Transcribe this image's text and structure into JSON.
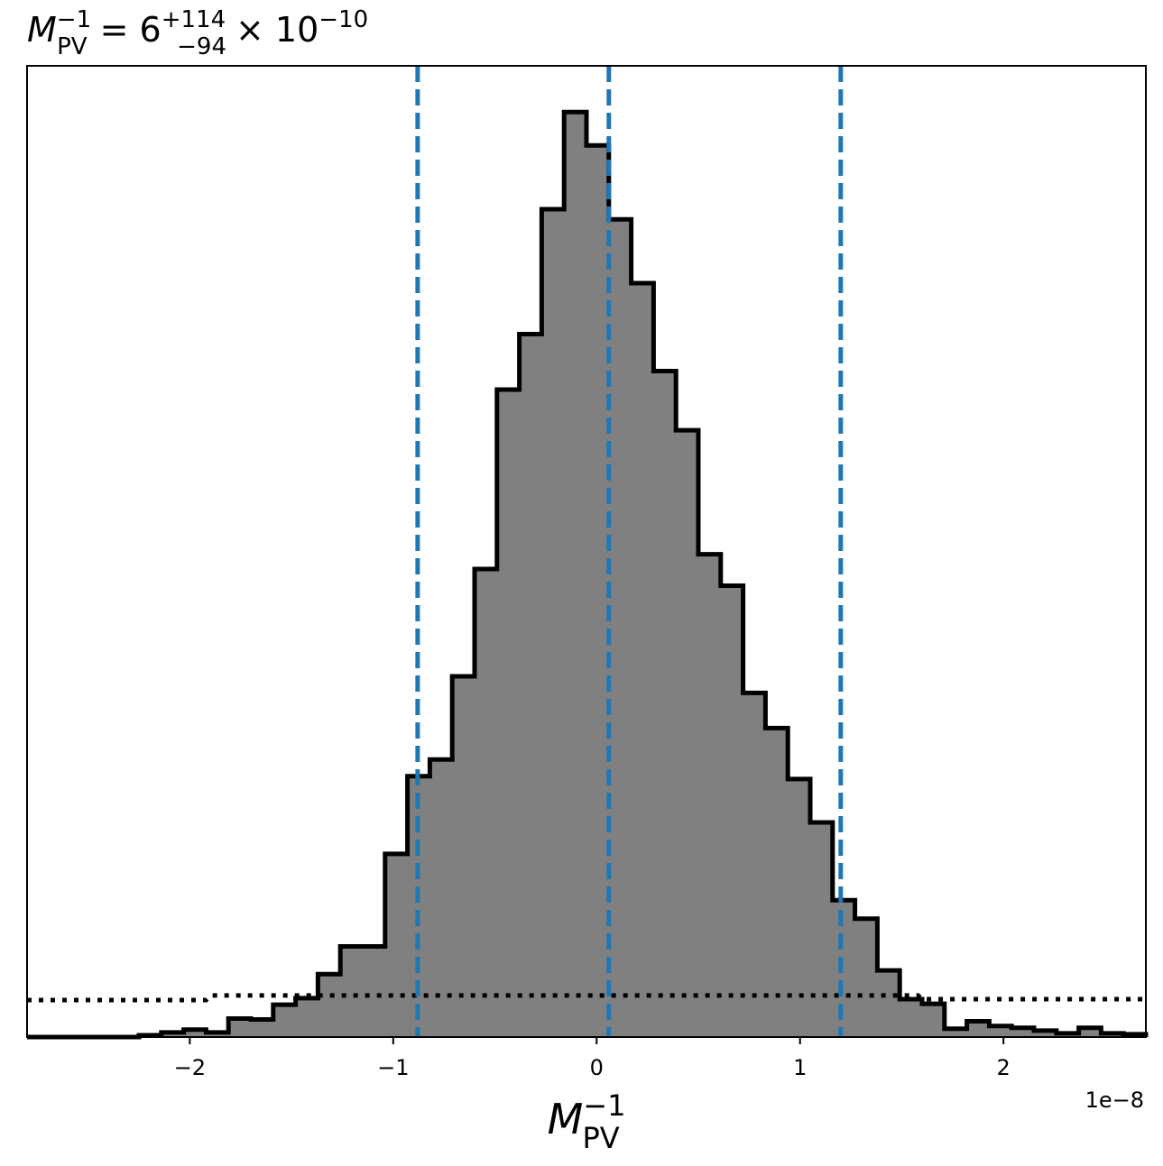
{
  "chart_data": {
    "type": "histogram",
    "title": {
      "symbol": "M",
      "symbol_sub": "PV",
      "symbol_sup": "−1",
      "equals": "= 6",
      "err_plus": "+114",
      "err_minus": "−94",
      "times": "× 10",
      "exponent": "−10"
    },
    "xlabel": {
      "symbol": "M",
      "sub": "PV",
      "sup": "−1"
    },
    "x_offset_label": "1e−8",
    "xlim": [
      -2.8,
      2.7
    ],
    "ylim": [
      0,
      1.05
    ],
    "xticks": [
      {
        "value": -2,
        "label": "−2"
      },
      {
        "value": -1,
        "label": "−1"
      },
      {
        "value": 0,
        "label": "0"
      },
      {
        "value": 1,
        "label": "1"
      },
      {
        "value": 2,
        "label": "2"
      }
    ],
    "yticks_visible": false,
    "bin_edges": [
      -2.8,
      -2.69,
      -2.58,
      -2.47,
      -2.36,
      -2.25,
      -2.14,
      -2.03,
      -1.92,
      -1.81,
      -1.7,
      -1.59,
      -1.48,
      -1.37,
      -1.26,
      -1.15,
      -1.04,
      -0.93,
      -0.82,
      -0.71,
      -0.6,
      -0.49,
      -0.38,
      -0.27,
      -0.16,
      -0.05,
      0.06,
      0.17,
      0.28,
      0.39,
      0.5,
      0.61,
      0.72,
      0.83,
      0.94,
      1.05,
      1.16,
      1.27,
      1.38,
      1.49,
      1.6,
      1.71,
      1.82,
      1.93,
      2.04,
      2.15,
      2.26,
      2.37,
      2.48,
      2.59,
      2.7
    ],
    "counts": [
      0,
      0,
      0,
      0,
      0,
      0.002,
      0.005,
      0.008,
      0.005,
      0.02,
      0.019,
      0.035,
      0.042,
      0.068,
      0.098,
      0.098,
      0.198,
      0.282,
      0.3,
      0.39,
      0.506,
      0.7,
      0.76,
      0.895,
      1.0,
      0.964,
      0.884,
      0.815,
      0.72,
      0.656,
      0.522,
      0.488,
      0.372,
      0.334,
      0.279,
      0.232,
      0.148,
      0.128,
      0.072,
      0.041,
      0.036,
      0.009,
      0.017,
      0.012,
      0.01,
      0.007,
      0.004,
      0.01,
      0.004,
      0.003
    ],
    "fill_color": "#808080",
    "edge_color": "#000000",
    "prior_dotted": {
      "x": [
        -2.8,
        -1.92,
        -1.9,
        1.58,
        1.6,
        2.7
      ],
      "y": [
        0.04,
        0.04,
        0.045,
        0.045,
        0.041,
        0.041
      ],
      "color": "#000000"
    },
    "quantile_lines": {
      "values": [
        -0.88,
        0.06,
        1.2
      ],
      "color": "#1f77b4",
      "style": "dashed"
    }
  }
}
